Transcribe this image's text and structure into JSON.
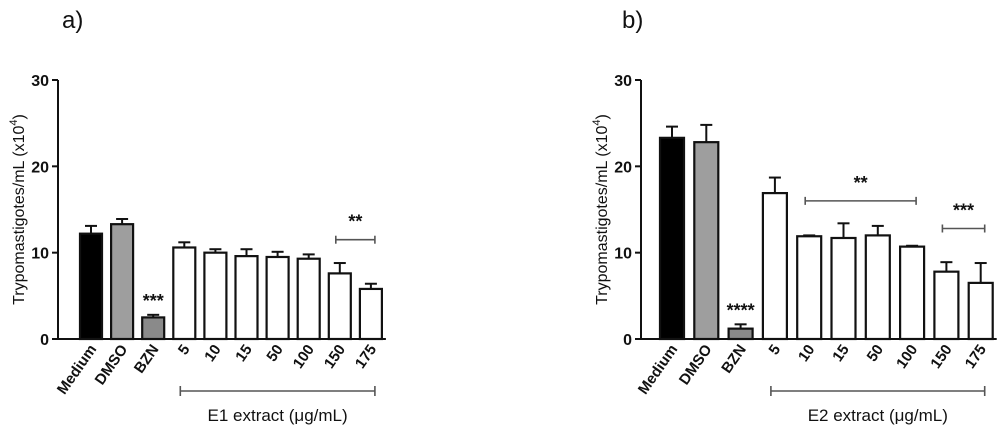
{
  "chart_data": [
    {
      "type": "bar",
      "panel": "a)",
      "ylabel": "Trypomastigotes/mL (x10",
      "ylabel_sup": "4",
      "ylabel_end": ")",
      "xlabel": "E1 extract (μg/mL)",
      "ylim": [
        0,
        30
      ],
      "yticks": [
        "0",
        "10",
        "20",
        "30"
      ],
      "categories": [
        "Medium",
        "DMSO",
        "BZN",
        "5",
        "10",
        "15",
        "50",
        "100",
        "150",
        "175"
      ],
      "values": [
        12.2,
        13.3,
        2.5,
        10.6,
        10.0,
        9.6,
        9.5,
        9.3,
        7.6,
        5.8
      ],
      "errors": [
        0.9,
        0.6,
        0.3,
        0.6,
        0.4,
        0.8,
        0.6,
        0.5,
        1.2,
        0.6
      ],
      "fills": [
        "#000000",
        "#9e9e9e",
        "#8a8a8a",
        "#ffffff",
        "#ffffff",
        "#ffffff",
        "#ffffff",
        "#ffffff",
        "#ffffff",
        "#ffffff"
      ],
      "annotations": [
        {
          "text": "***",
          "bar": 2
        },
        {
          "text": "**",
          "bracket": [
            8,
            9
          ],
          "level": 11.5
        }
      ],
      "extract_bracket": [
        3,
        9
      ]
    },
    {
      "type": "bar",
      "panel": "b)",
      "ylabel": "Trypomastigotes/mL (x10",
      "ylabel_sup": "4",
      "ylabel_end": ")",
      "xlabel": "E2 extract (μg/mL)",
      "ylim": [
        0,
        30
      ],
      "yticks": [
        "0",
        "10",
        "20",
        "30"
      ],
      "categories": [
        "Medium",
        "DMSO",
        "BZN",
        "5",
        "10",
        "15",
        "50",
        "100",
        "150",
        "175"
      ],
      "values": [
        23.3,
        22.8,
        1.2,
        16.9,
        11.9,
        11.7,
        12.0,
        10.7,
        7.8,
        6.5
      ],
      "errors": [
        1.3,
        2.0,
        0.5,
        1.8,
        0.1,
        1.7,
        1.1,
        0.1,
        1.1,
        2.3
      ],
      "fills": [
        "#000000",
        "#9e9e9e",
        "#8a8a8a",
        "#ffffff",
        "#ffffff",
        "#ffffff",
        "#ffffff",
        "#ffffff",
        "#ffffff",
        "#ffffff"
      ],
      "annotations": [
        {
          "text": "****",
          "bar": 2
        },
        {
          "text": "**",
          "bracket": [
            4,
            7
          ],
          "level": 16
        },
        {
          "text": "***",
          "bracket": [
            8,
            9
          ],
          "level": 12.8
        }
      ],
      "extract_bracket": [
        3,
        9
      ]
    }
  ]
}
